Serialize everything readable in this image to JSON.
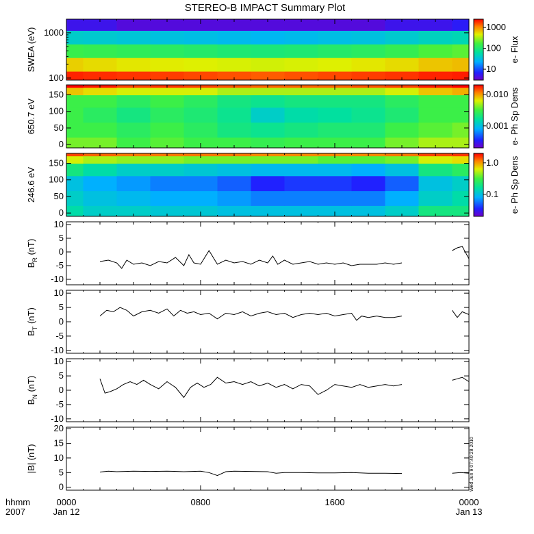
{
  "title": "STEREO-B IMPACT Summary Plot",
  "stamp": "Wed Jun  9 07:40:28 2010",
  "time_axis": {
    "unit_label": "hhmm",
    "year_label": "2007",
    "ticks": [
      {
        "hour": 0,
        "time": "0000",
        "date": "Jan 12"
      },
      {
        "hour": 8,
        "time": "0800",
        "date": ""
      },
      {
        "hour": 16,
        "time": "1600",
        "date": ""
      },
      {
        "hour": 24,
        "time": "0000",
        "date": "Jan 13"
      }
    ],
    "range_hours": [
      0,
      24
    ]
  },
  "chart_data": [
    {
      "type": "heatmap",
      "id": "swea",
      "ylabel": "SWEA (eV)",
      "yscale": "log",
      "ylim": [
        90,
        2000
      ],
      "yticks": [
        "100",
        "1000"
      ],
      "ytick_values": [
        100,
        1000
      ],
      "colorbar": {
        "label": "e- Flux",
        "ticks": [
          "10",
          "100",
          "1000"
        ],
        "tick_values": [
          10,
          100,
          1000
        ],
        "scale": "log",
        "range": [
          3,
          2500
        ]
      },
      "x_hours": [
        0,
        2,
        4,
        6,
        8,
        10,
        12,
        14,
        16,
        18,
        20,
        22,
        24
      ],
      "y_values": [
        100,
        200,
        400,
        800,
        1600
      ],
      "values": [
        [
          2000,
          1900,
          1800,
          1700,
          1600,
          1500,
          1400,
          1500,
          1600,
          1700,
          1800,
          2000,
          2100
        ],
        [
          600,
          550,
          500,
          480,
          460,
          440,
          420,
          440,
          460,
          500,
          550,
          650,
          700
        ],
        [
          150,
          140,
          130,
          120,
          110,
          100,
          95,
          100,
          110,
          120,
          140,
          180,
          200
        ],
        [
          40,
          38,
          35,
          32,
          30,
          28,
          26,
          28,
          30,
          32,
          38,
          45,
          50
        ],
        [
          5,
          5,
          4,
          4,
          4,
          4,
          4,
          4,
          4,
          4,
          5,
          5,
          6
        ]
      ]
    },
    {
      "type": "heatmap",
      "id": "pad650",
      "ylabel": "650.7 eV",
      "ylim": [
        -10,
        180
      ],
      "yticks": [
        "0",
        "50",
        "100",
        "150"
      ],
      "ytick_values": [
        0,
        50,
        100,
        150
      ],
      "colorbar": {
        "label": "e- Ph Sp Dens",
        "ticks": [
          "0.001",
          "0.010"
        ],
        "tick_values": [
          0.001,
          0.01
        ],
        "scale": "log",
        "range": [
          0.0002,
          0.02
        ]
      },
      "x_hours": [
        0,
        2,
        4,
        6,
        8,
        10,
        12,
        14,
        16,
        18,
        20,
        22,
        24
      ],
      "y_values": [
        0,
        45,
        90,
        135,
        165,
        180
      ],
      "values": [
        [
          0.004,
          0.004,
          0.003,
          0.0035,
          0.003,
          0.003,
          0.0028,
          0.003,
          0.003,
          0.003,
          0.004,
          0.005,
          0.005
        ],
        [
          0.003,
          0.003,
          0.0025,
          0.003,
          0.0025,
          0.002,
          0.0018,
          0.002,
          0.0022,
          0.0022,
          0.003,
          0.0035,
          0.004
        ],
        [
          0.003,
          0.0025,
          0.002,
          0.0025,
          0.0022,
          0.0018,
          0.0012,
          0.0015,
          0.0016,
          0.0018,
          0.0022,
          0.003,
          0.003
        ],
        [
          0.003,
          0.003,
          0.0025,
          0.003,
          0.0025,
          0.002,
          0.0018,
          0.002,
          0.002,
          0.002,
          0.0025,
          0.003,
          0.003
        ],
        [
          0.008,
          0.007,
          0.006,
          0.006,
          0.006,
          0.005,
          0.005,
          0.005,
          0.005,
          0.005,
          0.006,
          0.008,
          0.009
        ],
        [
          0.02,
          0.018,
          0.015,
          0.016,
          0.015,
          0.014,
          0.013,
          0.013,
          0.013,
          0.014,
          0.015,
          0.018,
          0.02
        ]
      ]
    },
    {
      "type": "heatmap",
      "id": "pad246",
      "ylabel": "246.6 eV",
      "ylim": [
        -10,
        180
      ],
      "yticks": [
        "0",
        "50",
        "100",
        "150"
      ],
      "ytick_values": [
        0,
        50,
        100,
        150
      ],
      "colorbar": {
        "label": "e- Ph Sp Dens",
        "ticks": [
          "0.1",
          "1.0"
        ],
        "tick_values": [
          0.1,
          1.0
        ],
        "scale": "log",
        "range": [
          0.02,
          2.0
        ]
      },
      "x_hours": [
        0,
        2,
        4,
        6,
        8,
        10,
        12,
        14,
        16,
        18,
        20,
        22,
        24
      ],
      "y_values": [
        0,
        45,
        90,
        135,
        165,
        180
      ],
      "values": [
        [
          0.15,
          0.12,
          0.12,
          0.11,
          0.11,
          0.1,
          0.1,
          0.1,
          0.1,
          0.1,
          0.12,
          0.2,
          0.2
        ],
        [
          0.12,
          0.1,
          0.09,
          0.08,
          0.08,
          0.07,
          0.06,
          0.06,
          0.06,
          0.06,
          0.08,
          0.12,
          0.15
        ],
        [
          0.1,
          0.08,
          0.07,
          0.06,
          0.06,
          0.05,
          0.035,
          0.04,
          0.04,
          0.035,
          0.05,
          0.1,
          0.12
        ],
        [
          0.2,
          0.15,
          0.12,
          0.12,
          0.11,
          0.1,
          0.09,
          0.09,
          0.09,
          0.08,
          0.1,
          0.2,
          0.25
        ],
        [
          0.6,
          0.5,
          0.45,
          0.45,
          0.4,
          0.4,
          0.4,
          0.4,
          0.35,
          0.35,
          0.4,
          0.6,
          0.7
        ],
        [
          1.5,
          1.3,
          1.2,
          1.2,
          1.2,
          1.2,
          1.1,
          1.1,
          1.1,
          1.1,
          1.2,
          1.5,
          1.6
        ]
      ]
    },
    {
      "type": "line",
      "id": "br",
      "ylabel": "B_R (nT)",
      "label_main": "B",
      "label_sub": "R",
      "label_unit": " (nT)",
      "ylim": [
        -12,
        11
      ],
      "yticks": [
        "-10",
        "-5",
        "0",
        "5",
        "10"
      ],
      "ytick_values": [
        -10,
        -5,
        0,
        5,
        10
      ],
      "segments": [
        {
          "x": [
            2.0,
            2.5,
            3.0,
            3.3,
            3.6,
            4.0,
            4.5,
            5.0,
            5.5,
            6.0,
            6.5,
            7.0,
            7.3,
            7.6,
            8.0,
            8.5,
            9.0,
            9.5,
            10.0,
            10.5,
            11.0,
            11.5,
            12.0,
            12.3,
            12.6,
            13.0,
            13.5,
            14.0,
            14.5,
            15.0,
            15.5,
            16.0,
            16.5,
            17.0,
            17.5,
            18.0,
            18.5,
            19.0,
            19.5,
            20.0
          ],
          "y": [
            -3.5,
            -3.0,
            -4.0,
            -6.0,
            -3.0,
            -4.5,
            -4.0,
            -5.0,
            -3.5,
            -4.0,
            -2.0,
            -5.0,
            -1.0,
            -4.0,
            -4.5,
            0.5,
            -4.5,
            -3.0,
            -4.0,
            -3.5,
            -4.5,
            -3.0,
            -4.0,
            -1.5,
            -4.5,
            -3.0,
            -4.5,
            -4.0,
            -3.5,
            -4.5,
            -4.0,
            -4.5,
            -4.0,
            -5.0,
            -4.5,
            -4.5,
            -4.5,
            -4.0,
            -4.5,
            -4.0
          ]
        },
        {
          "x": [
            23.0,
            23.3,
            23.6,
            24.0
          ],
          "y": [
            0.5,
            1.5,
            2.0,
            -2.5
          ]
        }
      ]
    },
    {
      "type": "line",
      "id": "bt",
      "ylabel": "B_T (nT)",
      "label_main": "B",
      "label_sub": "T",
      "label_unit": " (nT)",
      "ylim": [
        -11,
        11
      ],
      "yticks": [
        "-10",
        "-5",
        "0",
        "5",
        "10"
      ],
      "ytick_values": [
        -10,
        -5,
        0,
        5,
        10
      ],
      "segments": [
        {
          "x": [
            2.0,
            2.4,
            2.8,
            3.2,
            3.6,
            4.0,
            4.5,
            5.0,
            5.5,
            6.0,
            6.4,
            6.8,
            7.2,
            7.6,
            8.0,
            8.5,
            9.0,
            9.5,
            10.0,
            10.5,
            11.0,
            11.5,
            12.0,
            12.5,
            13.0,
            13.5,
            14.0,
            14.5,
            15.0,
            15.5,
            16.0,
            16.5,
            17.0,
            17.3,
            17.6,
            18.0,
            18.5,
            19.0,
            19.5,
            20.0
          ],
          "y": [
            2.0,
            4.0,
            3.5,
            5.0,
            4.0,
            2.0,
            3.5,
            4.0,
            3.0,
            4.5,
            2.0,
            4.0,
            3.0,
            3.5,
            2.5,
            3.0,
            1.0,
            3.0,
            2.5,
            3.5,
            2.0,
            3.0,
            3.5,
            2.5,
            3.0,
            1.5,
            2.5,
            3.0,
            2.5,
            3.0,
            2.0,
            2.5,
            3.0,
            0.5,
            2.0,
            1.5,
            2.0,
            1.5,
            1.5,
            2.0
          ]
        },
        {
          "x": [
            23.0,
            23.3,
            23.6,
            24.0
          ],
          "y": [
            4.0,
            1.5,
            3.5,
            2.5
          ]
        }
      ]
    },
    {
      "type": "line",
      "id": "bn",
      "ylabel": "B_N (nT)",
      "label_main": "B",
      "label_sub": "N",
      "label_unit": " (nT)",
      "ylim": [
        -11,
        11
      ],
      "yticks": [
        "-10",
        "-5",
        "0",
        "5",
        "10"
      ],
      "ytick_values": [
        -10,
        -5,
        0,
        5,
        10
      ],
      "segments": [
        {
          "x": [
            2.0,
            2.3,
            2.6,
            3.0,
            3.4,
            3.8,
            4.2,
            4.6,
            5.0,
            5.5,
            6.0,
            6.5,
            7.0,
            7.4,
            7.8,
            8.2,
            8.6,
            9.0,
            9.5,
            10.0,
            10.5,
            11.0,
            11.5,
            12.0,
            12.5,
            13.0,
            13.5,
            14.0,
            14.5,
            15.0,
            15.5,
            16.0,
            16.5,
            17.0,
            17.5,
            18.0,
            18.5,
            19.0,
            19.5,
            20.0
          ],
          "y": [
            4.0,
            -1.0,
            -0.5,
            0.5,
            2.0,
            3.0,
            2.0,
            3.5,
            2.0,
            0.5,
            3.0,
            1.0,
            -2.5,
            1.0,
            2.5,
            1.0,
            2.0,
            4.5,
            2.5,
            3.0,
            2.0,
            3.0,
            1.5,
            2.5,
            1.0,
            2.0,
            0.5,
            2.0,
            1.5,
            -1.5,
            0.0,
            2.0,
            1.5,
            1.0,
            2.0,
            1.0,
            1.5,
            2.0,
            1.5,
            2.0
          ]
        },
        {
          "x": [
            23.0,
            23.3,
            23.6,
            24.0
          ],
          "y": [
            3.5,
            4.0,
            4.5,
            3.0
          ]
        }
      ]
    },
    {
      "type": "line",
      "id": "bmag",
      "ylabel": "|B| (nT)",
      "label_main": "|B|",
      "label_sub": "",
      "label_unit": " (nT)",
      "ylim": [
        -1,
        20.5
      ],
      "yticks": [
        "0",
        "5",
        "10",
        "15",
        "20"
      ],
      "ytick_values": [
        0,
        5,
        10,
        15,
        20
      ],
      "segments": [
        {
          "x": [
            2.0,
            2.5,
            3.0,
            4.0,
            5.0,
            6.0,
            7.0,
            8.0,
            8.5,
            9.0,
            9.5,
            10.0,
            11.0,
            12.0,
            12.5,
            13.0,
            14.0,
            15.0,
            16.0,
            17.0,
            18.0,
            19.0,
            20.0
          ],
          "y": [
            5.2,
            5.5,
            5.3,
            5.5,
            5.4,
            5.5,
            5.3,
            5.5,
            5.0,
            4.0,
            5.3,
            5.5,
            5.4,
            5.3,
            4.8,
            5.0,
            5.0,
            4.9,
            4.9,
            5.0,
            4.8,
            4.8,
            4.7
          ]
        },
        {
          "x": [
            23.0,
            23.5,
            24.0
          ],
          "y": [
            4.8,
            5.0,
            4.8
          ]
        }
      ]
    }
  ]
}
